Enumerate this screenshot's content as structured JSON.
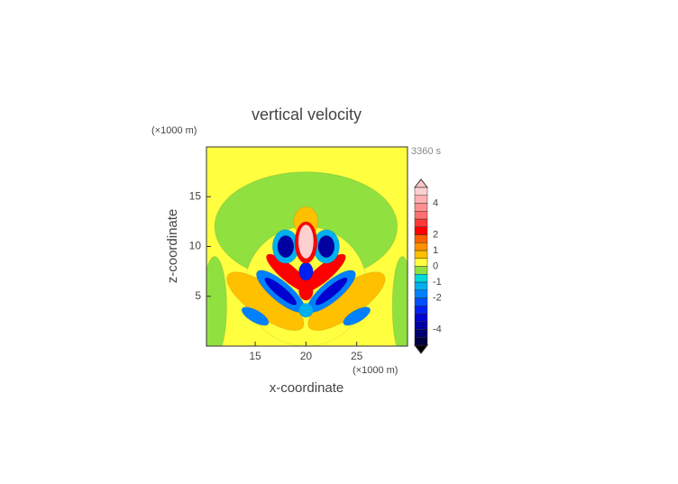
{
  "chart_data": {
    "type": "contour",
    "title": "vertical velocity",
    "x_label": "x-coordinate",
    "y_label": "z-coordinate",
    "x_unit": "(×1000 m)",
    "y_unit": "(×1000 m)",
    "time_label": "3360 s",
    "xlim": [
      10.2,
      30
    ],
    "ylim": [
      0,
      20
    ],
    "xticks": [
      15,
      20,
      25
    ],
    "yticks": [
      5,
      10,
      15
    ],
    "colorbar": {
      "levels": [
        -5,
        -4.5,
        -4,
        -3.5,
        -3,
        -2.5,
        -2,
        -1.5,
        -1,
        -0.5,
        0,
        0.5,
        1,
        1.5,
        2,
        2.5,
        3,
        3.5,
        4,
        4.5,
        5
      ],
      "colors": [
        "#000040",
        "#000070",
        "#0000a0",
        "#0000d0",
        "#0020f0",
        "#0050ff",
        "#0080ff",
        "#00b0f0",
        "#00d8d8",
        "#90e040",
        "#ffff40",
        "#ffc000",
        "#ff9000",
        "#ff6000",
        "#ff0000",
        "#ff3838",
        "#ff7070",
        "#ff9090",
        "#ffb0b0",
        "#ffd0d0"
      ],
      "ticks": [
        4,
        2,
        1,
        0,
        -1,
        -2,
        -4
      ]
    },
    "blobs": [
      {
        "x": 20,
        "y": 12,
        "rx": 9,
        "ry": 5.5,
        "angle": 0,
        "value": -0.25
      },
      {
        "x": 11,
        "y": 4,
        "rx": 1.2,
        "ry": 5,
        "angle": 0,
        "value": -0.25
      },
      {
        "x": 29.5,
        "y": 4,
        "rx": 1,
        "ry": 5,
        "angle": 0,
        "value": -0.25
      },
      {
        "x": 20,
        "y": 6,
        "rx": 6,
        "ry": 6,
        "angle": 0,
        "value": 0.25
      },
      {
        "x": 16,
        "y": 4.5,
        "rx": 4.5,
        "ry": 1.6,
        "angle": -35,
        "value": 0.75
      },
      {
        "x": 24,
        "y": 4.5,
        "rx": 4.5,
        "ry": 1.6,
        "angle": 35,
        "value": 0.75
      },
      {
        "x": 17.5,
        "y": 5.5,
        "rx": 3,
        "ry": 1,
        "angle": -40,
        "value": -1.7
      },
      {
        "x": 22.5,
        "y": 5.5,
        "rx": 3,
        "ry": 1,
        "angle": 40,
        "value": -1.7
      },
      {
        "x": 17.5,
        "y": 5.5,
        "rx": 2,
        "ry": 0.5,
        "angle": -40,
        "value": -3.2
      },
      {
        "x": 22.5,
        "y": 5.5,
        "rx": 2,
        "ry": 0.5,
        "angle": 40,
        "value": -3.2
      },
      {
        "x": 18.3,
        "y": 7.3,
        "rx": 2.8,
        "ry": 0.8,
        "angle": -40,
        "value": 2.2
      },
      {
        "x": 21.7,
        "y": 7.3,
        "rx": 2.8,
        "ry": 0.8,
        "angle": 40,
        "value": 2.2
      },
      {
        "x": 20,
        "y": 7.5,
        "rx": 0.7,
        "ry": 0.9,
        "angle": 0,
        "value": -2.7
      },
      {
        "x": 20,
        "y": 5.5,
        "rx": 0.7,
        "ry": 0.9,
        "angle": 0,
        "value": 2.2
      },
      {
        "x": 20,
        "y": 3.6,
        "rx": 0.7,
        "ry": 0.7,
        "angle": 0,
        "value": -1.2
      },
      {
        "x": 15,
        "y": 3,
        "rx": 1.5,
        "ry": 0.6,
        "angle": -30,
        "value": -1.7
      },
      {
        "x": 25,
        "y": 3,
        "rx": 1.5,
        "ry": 0.6,
        "angle": 30,
        "value": -1.7
      },
      {
        "x": 20,
        "y": 12.5,
        "rx": 1.2,
        "ry": 1.5,
        "angle": 0,
        "value": 0.75
      },
      {
        "x": 18,
        "y": 10,
        "rx": 1.3,
        "ry": 1.7,
        "angle": 0,
        "value": -1.2
      },
      {
        "x": 22,
        "y": 10,
        "rx": 1.3,
        "ry": 1.7,
        "angle": 0,
        "value": -1.2
      },
      {
        "x": 18,
        "y": 10,
        "rx": 0.8,
        "ry": 1.1,
        "angle": 0,
        "value": -3.7
      },
      {
        "x": 22,
        "y": 10,
        "rx": 0.8,
        "ry": 1.1,
        "angle": 0,
        "value": -3.7
      },
      {
        "x": 20,
        "y": 10.4,
        "rx": 1.1,
        "ry": 2.1,
        "angle": 0,
        "value": 2.2
      },
      {
        "x": 20,
        "y": 10.5,
        "rx": 0.75,
        "ry": 1.7,
        "angle": 0,
        "value": 4.9
      }
    ]
  }
}
